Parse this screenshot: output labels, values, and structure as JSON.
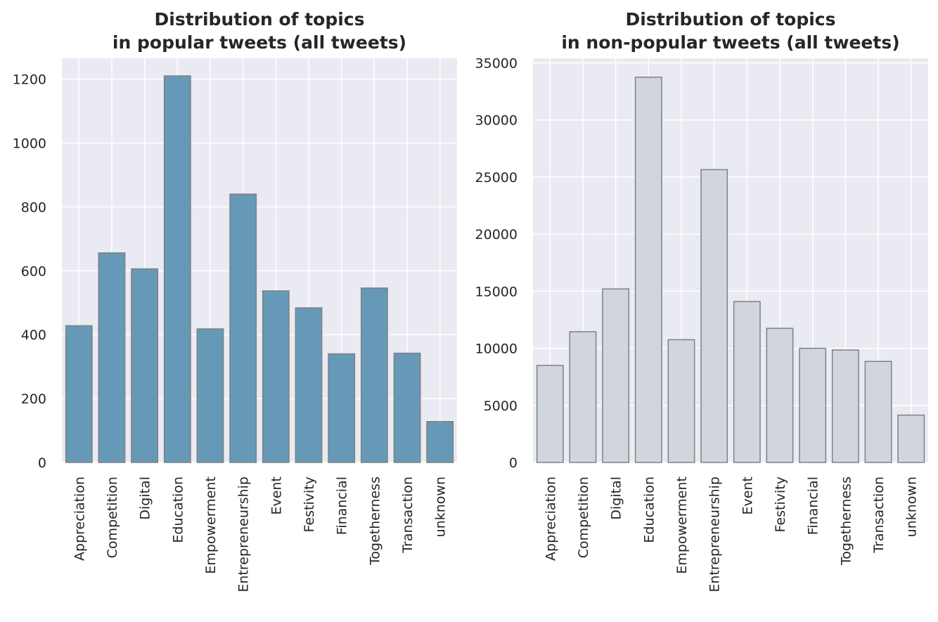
{
  "chart_data": [
    {
      "type": "bar",
      "title": "Distribution of topics\nin popular tweets (all tweets)",
      "xlabel": "",
      "ylabel": "",
      "categories": [
        "Appreciation",
        "Competition",
        "Digital",
        "Education",
        "Empowerment",
        "Entrepreneurship",
        "Event",
        "Festivity",
        "Financial",
        "Togetherness",
        "Transaction",
        "unknown"
      ],
      "values": [
        428,
        656,
        606,
        1210,
        418,
        840,
        537,
        484,
        340,
        546,
        342,
        128
      ],
      "ylim": [
        0,
        1265
      ],
      "yticks": [
        0,
        200,
        400,
        600,
        800,
        1000,
        1200
      ],
      "grid": true,
      "legend": "none",
      "bar_color": "#6699b8"
    },
    {
      "type": "bar",
      "title": "Distribution of topics\nin non-popular tweets (all tweets)",
      "xlabel": "",
      "ylabel": "",
      "categories": [
        "Appreciation",
        "Competition",
        "Digital",
        "Education",
        "Empowerment",
        "Entrepreneurship",
        "Event",
        "Festivity",
        "Financial",
        "Togetherness",
        "Transaction",
        "unknown"
      ],
      "values": [
        8500,
        11450,
        15200,
        33750,
        10750,
        25650,
        14100,
        11750,
        10000,
        9850,
        8850,
        4150
      ],
      "ylim": [
        0,
        35400
      ],
      "yticks": [
        0,
        5000,
        10000,
        15000,
        20000,
        25000,
        30000,
        35000
      ],
      "grid": true,
      "legend": "none",
      "bar_color": "#d1d6de"
    }
  ]
}
